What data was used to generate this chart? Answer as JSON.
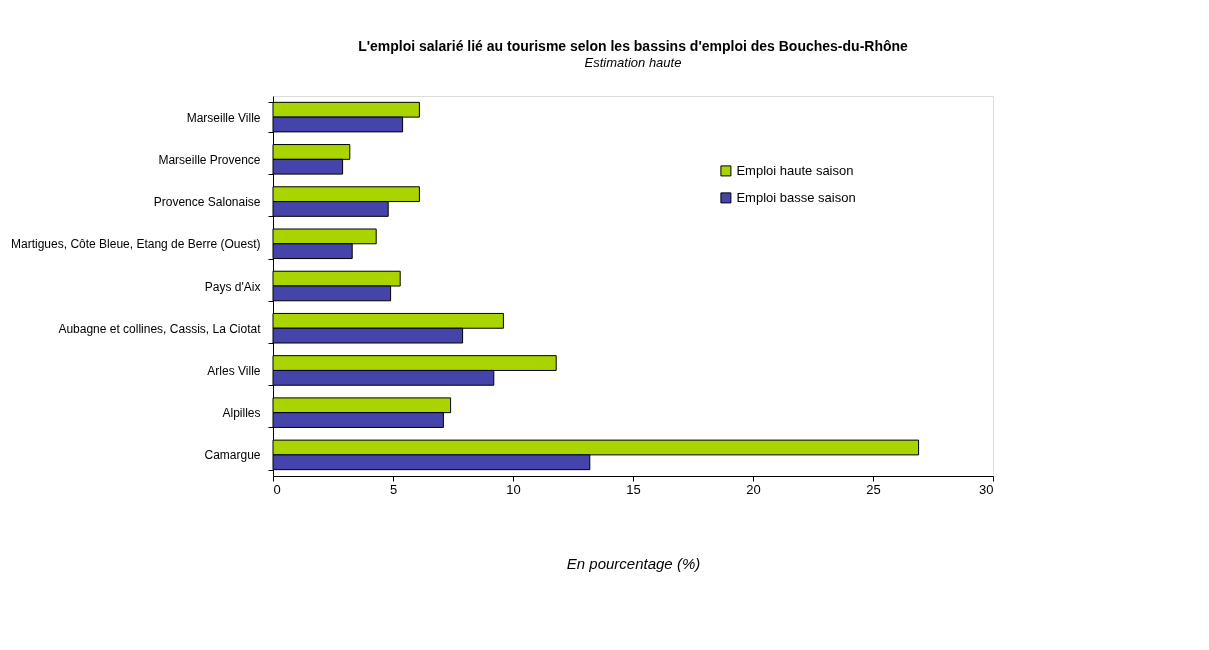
{
  "chart_data": {
    "type": "bar",
    "orientation": "horizontal",
    "title": "L'emploi salarié lié au tourisme selon les bassins d'emploi des Bouches-du-Rhône",
    "subtitle": "Estimation haute",
    "xlabel": "En pourcentage (%)",
    "categories": [
      "Marseille Ville",
      "Marseille Provence",
      "Provence Salonaise",
      "Martigues, Côte Bleue, Etang de Berre (Ouest)",
      "Pays d'Aix",
      "Aubagne et collines, Cassis, La Ciotat",
      "Arles Ville",
      "Alpilles",
      "Camargue"
    ],
    "series": [
      {
        "name": "Emploi haute saison",
        "color": "#aad400",
        "values": [
          6.1,
          3.2,
          6.1,
          4.3,
          5.3,
          9.6,
          11.8,
          7.4,
          26.9
        ]
      },
      {
        "name": "Emploi basse saison",
        "color": "#4444aa",
        "values": [
          5.4,
          2.9,
          4.8,
          3.3,
          4.9,
          7.9,
          9.2,
          7.1,
          13.2
        ]
      }
    ],
    "xlim": [
      0,
      30
    ],
    "xticks": [
      0,
      5,
      10,
      15,
      20,
      25,
      30
    ],
    "grid": false,
    "legend": "right"
  }
}
